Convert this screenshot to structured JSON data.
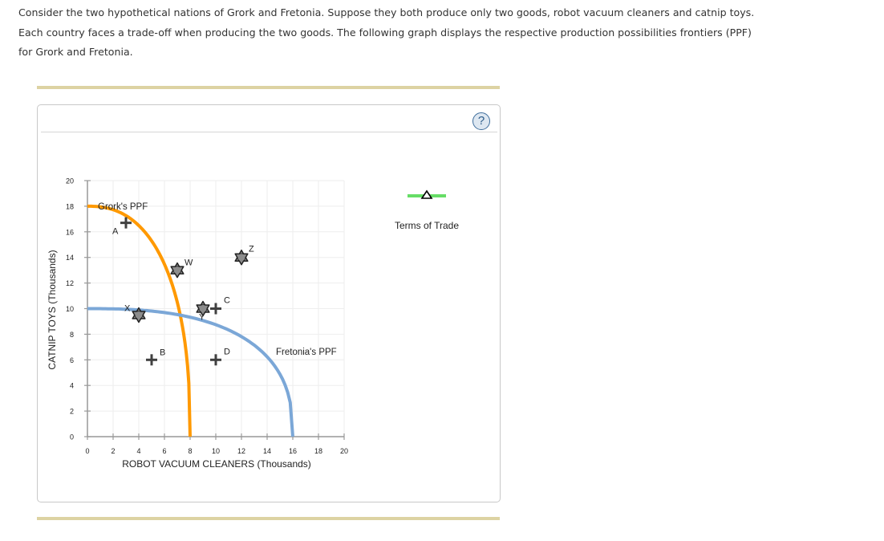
{
  "intro": {
    "text": "Consider the two hypothetical nations of Grork and Fretonia. Suppose they both produce only two goods, robot vacuum cleaners and catnip toys. Each country faces a trade-off when producing the two goods. The following graph displays the respective production possibilities frontiers (PPF) for Grork and Fretonia."
  },
  "panel": {
    "help_icon": "?",
    "legend": {
      "terms_of_trade_label": "Terms of Trade",
      "terms_of_trade_color": "#66dd66"
    }
  },
  "colors": {
    "grork": "#ff9900",
    "fretonia": "#7ba7d7",
    "axis": "#999999",
    "grid": "#eeeeee"
  },
  "chart_data": {
    "type": "line",
    "title": "",
    "xlabel": "ROBOT VACUUM CLEANERS (Thousands)",
    "ylabel": "CATNIP TOYS (Thousands)",
    "xlim": [
      0,
      20
    ],
    "ylim": [
      0,
      20
    ],
    "xticks": [
      0,
      2,
      4,
      6,
      8,
      10,
      12,
      14,
      16,
      18,
      20
    ],
    "yticks": [
      0,
      2,
      4,
      6,
      8,
      10,
      12,
      14,
      16,
      18,
      20
    ],
    "grid": true,
    "series": [
      {
        "name": "Grork's PPF",
        "color": "#ff9900",
        "x_intercept": 8,
        "y_intercept": 18,
        "points": [
          [
            0,
            18
          ],
          [
            3,
            16.7
          ],
          [
            5,
            14.1
          ],
          [
            6,
            12.1
          ],
          [
            7,
            8.7
          ],
          [
            7.5,
            6.3
          ],
          [
            8,
            0
          ]
        ]
      },
      {
        "name": "Fretonia's PPF",
        "color": "#7ba7d7",
        "x_intercept": 16,
        "y_intercept": 10,
        "points": [
          [
            0,
            10
          ],
          [
            4,
            9.7
          ],
          [
            8,
            8.9
          ],
          [
            10,
            7.8
          ],
          [
            12,
            6.6
          ],
          [
            14,
            4.8
          ],
          [
            15,
            3.5
          ],
          [
            16,
            0
          ]
        ]
      }
    ],
    "points": [
      {
        "label": "A",
        "x": 3,
        "y": 16.7,
        "marker": "plus"
      },
      {
        "label": "B",
        "x": 5,
        "y": 6,
        "marker": "plus"
      },
      {
        "label": "C",
        "x": 10,
        "y": 10,
        "marker": "plus"
      },
      {
        "label": "D",
        "x": 10,
        "y": 6,
        "marker": "plus"
      },
      {
        "label": "W",
        "x": 7,
        "y": 13,
        "marker": "star"
      },
      {
        "label": "X",
        "x": 4,
        "y": 9.5,
        "marker": "star"
      },
      {
        "label": "Y",
        "x": 9,
        "y": 10,
        "marker": "star"
      },
      {
        "label": "Z",
        "x": 12,
        "y": 14,
        "marker": "star"
      }
    ],
    "annotations": [
      "Grork's PPF",
      "Fretonia's PPF"
    ],
    "legend": [
      "Terms of Trade"
    ]
  }
}
